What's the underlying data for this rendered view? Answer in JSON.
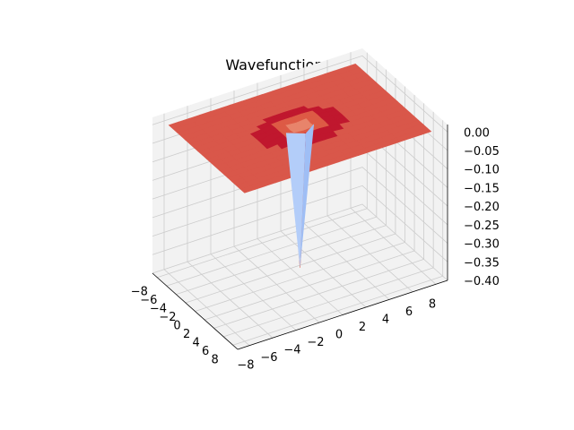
{
  "chart_data": {
    "type": "surface3d",
    "title": "Wavefunction Error",
    "colormap": "coolwarm",
    "grid": true,
    "x_ticks": [
      "−8",
      "−6",
      "−4",
      "−2",
      "0",
      "2",
      "4",
      "6",
      "8"
    ],
    "x_tick_values": [
      -8,
      -6,
      -4,
      -2,
      0,
      2,
      4,
      6,
      8
    ],
    "y_ticks": [
      "−8",
      "−6",
      "−4",
      "−2",
      "0",
      "2",
      "4",
      "6",
      "8"
    ],
    "y_tick_values": [
      -8,
      -6,
      -4,
      -2,
      0,
      2,
      4,
      6,
      8
    ],
    "z_ticks": [
      "0.00",
      "−0.05",
      "−0.10",
      "−0.15",
      "−0.20",
      "−0.25",
      "−0.30",
      "−0.35",
      "−0.40"
    ],
    "z_tick_values": [
      0.0,
      -0.05,
      -0.1,
      -0.15,
      -0.2,
      -0.25,
      -0.3,
      -0.35,
      -0.4
    ],
    "xlim": [
      -9,
      9
    ],
    "ylim": [
      -9,
      9
    ],
    "zlim": [
      -0.4,
      0.02
    ],
    "surface": {
      "plateau_value": 0.0,
      "ring_peak_value": 0.01,
      "ring_radius": 2.0,
      "minimum_value": -0.375,
      "minimum_at": [
        0,
        0
      ]
    },
    "colors": {
      "plateau": "#d9574a",
      "ring": "#c0172e",
      "spike": "#b3cdf9",
      "pane": "#f2f2f2",
      "grid": "#cccccc"
    }
  }
}
